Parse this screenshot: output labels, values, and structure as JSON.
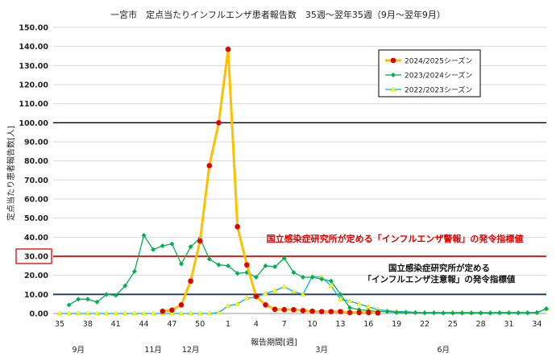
{
  "chart_data": {
    "type": "line",
    "title": "一宮市　定点当たりインフルエンザ患者報告数　35週～翌年35週（9月～翌年9月）",
    "xlabel": "報告期間[週]",
    "ylabel": "定点当たり患者報告数[人]",
    "ylim": [
      0,
      150
    ],
    "yticks": [
      "0.00",
      "10.00",
      "20.00",
      "30.00",
      "40.00",
      "50.00",
      "60.00",
      "70.00",
      "80.00",
      "90.00",
      "100.00",
      "110.00",
      "120.00",
      "130.00",
      "140.00",
      "150.00"
    ],
    "x_weeks": [
      35,
      36,
      37,
      38,
      39,
      40,
      41,
      42,
      43,
      44,
      45,
      46,
      47,
      48,
      49,
      50,
      51,
      52,
      1,
      2,
      3,
      4,
      5,
      6,
      7,
      8,
      9,
      10,
      11,
      12,
      13,
      14,
      15,
      16,
      17,
      18,
      19,
      20,
      21,
      22,
      23,
      24,
      25,
      26,
      27,
      28,
      29,
      30,
      31,
      32,
      33,
      34,
      35
    ],
    "xtick_labels": [
      "35",
      "38",
      "41",
      "44",
      "47",
      "50",
      "1",
      "4",
      "7",
      "10",
      "13",
      "16",
      "19",
      "22",
      "25",
      "28",
      "31",
      "34"
    ],
    "months": [
      {
        "label": "9月",
        "week": 37
      },
      {
        "label": "11月",
        "week": 45
      },
      {
        "label": "12月",
        "week": 49
      },
      {
        "label": "3月",
        "week": 11
      },
      {
        "label": "6月",
        "week": 24
      }
    ],
    "legend_position": "top-right",
    "series": [
      {
        "name": "2024/2025シーズン",
        "color": "#ffc000",
        "marker": "#e00000",
        "values": [
          null,
          null,
          null,
          null,
          null,
          null,
          null,
          null,
          null,
          null,
          null,
          1.2,
          1.8,
          4.5,
          17,
          38,
          77.5,
          100,
          138.5,
          45.5,
          25.5,
          9,
          4.5,
          2.2,
          2,
          2,
          1.5,
          1.2,
          1,
          1,
          1,
          0.5,
          0.5,
          0.5,
          0.3,
          null,
          null,
          null,
          null,
          null,
          null,
          null,
          null,
          null,
          null,
          null,
          null,
          null,
          null,
          null,
          null,
          null,
          null
        ]
      },
      {
        "name": "2023/2024シーズン",
        "color": "#00b050",
        "marker": "#00b050",
        "values": [
          null,
          4.5,
          7.5,
          7.5,
          6,
          10,
          9.5,
          14.5,
          22,
          41,
          33.5,
          35.5,
          36.5,
          26,
          35,
          39.5,
          28.5,
          25.5,
          25,
          21,
          21.5,
          19,
          25,
          24.5,
          29,
          21.5,
          19,
          19,
          18,
          17,
          10,
          3,
          2,
          1.5,
          1,
          1,
          0.5,
          0.5,
          0.5,
          0.3,
          0.3,
          0.2,
          0.2,
          0.2,
          0.2,
          0.2,
          0.2,
          0.3,
          0.3,
          0.3,
          0.3,
          0.5,
          2.5
        ]
      },
      {
        "name": "2022/2023シーズン",
        "color": "#00b0f0",
        "marker": "#ffff00",
        "values": [
          0,
          0,
          0,
          0,
          0,
          0,
          0,
          0,
          0,
          0,
          0,
          0,
          0,
          0,
          0,
          0,
          0,
          0.5,
          4,
          5,
          8,
          8.5,
          10.5,
          12,
          14,
          11.5,
          10,
          19.5,
          19,
          14.5,
          7.5,
          6.5,
          5,
          3.5,
          2,
          1.5,
          1,
          1,
          0.5,
          0.5,
          0.5,
          0.5,
          0.5,
          0.5,
          0.5,
          0.5,
          0.5,
          0.5,
          0.5,
          0.5,
          0.5,
          0.5,
          2.5
        ]
      }
    ],
    "reference_lines": [
      {
        "value": 100,
        "color": "#000000",
        "label": "100.00"
      },
      {
        "value": 30,
        "color": "#e00000",
        "label": "30.00",
        "annotation": "国立感染症研究所が定める「インフルエンザ警報」の発令指標値"
      },
      {
        "value": 10,
        "color": "#1f3864",
        "annotation_line1": "国立感染症研究所が定める",
        "annotation_line2": "「インフルエンザ注意報」の発令指標値"
      }
    ]
  }
}
